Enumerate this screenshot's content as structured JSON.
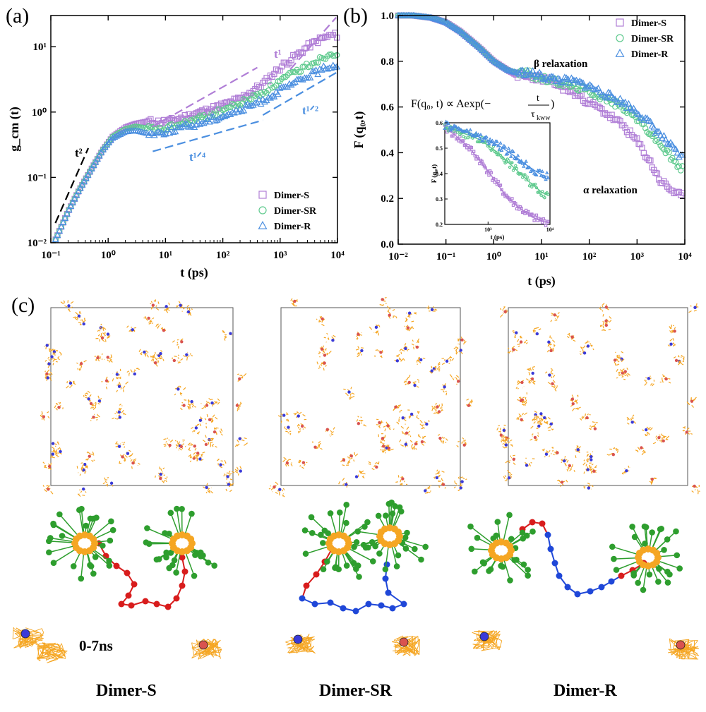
{
  "panel_labels": {
    "a": "(a)",
    "b": "(b)",
    "c": "(c)"
  },
  "colors": {
    "dimer_s": "#b07ed6",
    "dimer_sr": "#5fca8e",
    "dimer_r": "#4b8fe0",
    "orange": "#f5a623",
    "green": "#2e9e2e",
    "red": "#d81c1c",
    "blue": "#1f47d8"
  },
  "chart_data": [
    {
      "type": "scatter",
      "panel": "(a)",
      "xlabel": "t (ps)",
      "ylabel": "g_cm (t)",
      "xscale": "log",
      "yscale": "log",
      "xlim": [
        0.1,
        10000
      ],
      "ylim": [
        0.01,
        30
      ],
      "xticks": [
        "10⁻¹",
        "10⁰",
        "10¹",
        "10²",
        "10³",
        "10⁴"
      ],
      "yticks": [
        "10⁻²",
        "10⁻¹",
        "10⁰",
        "10¹"
      ],
      "legend_position": "bottom-right",
      "series": [
        {
          "name": "Dimer-S",
          "marker": "square",
          "color": "#b07ed6",
          "x": [
            0.12,
            0.2,
            0.3,
            0.5,
            0.8,
            1.2,
            2,
            3,
            5,
            8,
            12,
            20,
            30,
            50,
            80,
            120,
            200,
            300,
            500,
            800,
            1200,
            2000,
            3000,
            5000,
            8000
          ],
          "y": [
            0.011,
            0.03,
            0.06,
            0.13,
            0.26,
            0.42,
            0.58,
            0.66,
            0.72,
            0.7,
            0.73,
            0.82,
            0.92,
            1.05,
            1.2,
            1.35,
            1.6,
            2.0,
            2.7,
            4.0,
            5.5,
            7.5,
            10,
            13,
            15
          ]
        },
        {
          "name": "Dimer-SR",
          "marker": "circle",
          "color": "#5fca8e",
          "x": [
            0.12,
            0.2,
            0.3,
            0.5,
            0.8,
            1.2,
            2,
            3,
            5,
            8,
            12,
            20,
            30,
            50,
            80,
            120,
            200,
            300,
            500,
            800,
            1200,
            2000,
            3000,
            5000,
            8000
          ],
          "y": [
            0.011,
            0.03,
            0.06,
            0.13,
            0.26,
            0.42,
            0.55,
            0.6,
            0.56,
            0.53,
            0.58,
            0.66,
            0.74,
            0.86,
            1.0,
            1.15,
            1.35,
            1.6,
            2.0,
            2.6,
            3.3,
            4.2,
            5.2,
            6.5,
            8.0
          ]
        },
        {
          "name": "Dimer-R",
          "marker": "triangle",
          "color": "#4b8fe0",
          "x": [
            0.12,
            0.2,
            0.3,
            0.5,
            0.8,
            1.2,
            2,
            3,
            5,
            8,
            12,
            20,
            30,
            50,
            80,
            120,
            200,
            300,
            500,
            800,
            1200,
            2000,
            3000,
            5000,
            8000
          ],
          "y": [
            0.011,
            0.03,
            0.06,
            0.13,
            0.26,
            0.4,
            0.5,
            0.52,
            0.47,
            0.48,
            0.52,
            0.58,
            0.63,
            0.72,
            0.82,
            0.93,
            1.05,
            1.25,
            1.5,
            1.9,
            2.3,
            2.9,
            3.5,
            4.3,
            5.2
          ]
        }
      ],
      "annotations": [
        {
          "text": "t²",
          "color": "#000000",
          "line_x": [
            0.12,
            0.45
          ],
          "line_y": [
            0.02,
            0.28
          ]
        },
        {
          "text": "t¹",
          "color": "#b07ed6",
          "line_x": [
            1500,
            9500
          ],
          "line_y": [
            4.5,
            28
          ]
        },
        {
          "text": "t¹ᐟ²",
          "color": "#b07ed6",
          "line_x": [
            6,
            400
          ],
          "line_y": [
            0.6,
            4.8
          ]
        },
        {
          "text": "t¹ᐟ²",
          "color": "#4b8fe0",
          "line_x": [
            500,
            9500
          ],
          "line_y": [
            0.9,
            4.0
          ]
        },
        {
          "text": "t¹ᐟ⁴",
          "color": "#4b8fe0",
          "line_x": [
            6,
            500
          ],
          "line_y": [
            0.25,
            0.75
          ]
        }
      ]
    },
    {
      "type": "scatter",
      "panel": "(b)",
      "xlabel": "t (ps)",
      "ylabel": "F (q₀,t)",
      "xscale": "log",
      "xlim": [
        0.01,
        10000
      ],
      "ylim": [
        0.0,
        1.0
      ],
      "xticks": [
        "10⁻²",
        "10⁻¹",
        "10⁰",
        "10¹",
        "10²",
        "10³",
        "10⁴"
      ],
      "yticks": [
        "0.0",
        "0.2",
        "0.4",
        "0.6",
        "0.8",
        "1.0"
      ],
      "legend_position": "top-right",
      "series": [
        {
          "name": "Dimer-S",
          "marker": "square",
          "color": "#b07ed6",
          "x": [
            0.01,
            0.02,
            0.05,
            0.1,
            0.2,
            0.5,
            1,
            2,
            3,
            5,
            8,
            12,
            20,
            50,
            100,
            200,
            500,
            1000,
            2000,
            3000,
            5000,
            8000
          ],
          "y": [
            1.0,
            1.0,
            0.99,
            0.97,
            0.93,
            0.86,
            0.8,
            0.76,
            0.74,
            0.73,
            0.73,
            0.72,
            0.7,
            0.66,
            0.62,
            0.58,
            0.52,
            0.45,
            0.35,
            0.28,
            0.24,
            0.21
          ]
        },
        {
          "name": "Dimer-SR",
          "marker": "circle",
          "color": "#5fca8e",
          "x": [
            0.01,
            0.02,
            0.05,
            0.1,
            0.2,
            0.5,
            1,
            2,
            3,
            5,
            8,
            12,
            20,
            50,
            100,
            200,
            500,
            1000,
            2000,
            3000,
            5000,
            8000
          ],
          "y": [
            1.0,
            1.0,
            0.99,
            0.97,
            0.93,
            0.86,
            0.8,
            0.76,
            0.75,
            0.75,
            0.73,
            0.72,
            0.71,
            0.69,
            0.67,
            0.64,
            0.6,
            0.55,
            0.48,
            0.44,
            0.38,
            0.33
          ]
        },
        {
          "name": "Dimer-R",
          "marker": "triangle",
          "color": "#4b8fe0",
          "x": [
            0.01,
            0.02,
            0.05,
            0.1,
            0.2,
            0.5,
            1,
            2,
            3,
            5,
            8,
            12,
            20,
            50,
            100,
            200,
            500,
            1000,
            2000,
            3000,
            5000,
            8000
          ],
          "y": [
            1.0,
            1.0,
            0.99,
            0.97,
            0.93,
            0.86,
            0.8,
            0.76,
            0.75,
            0.75,
            0.74,
            0.73,
            0.72,
            0.71,
            0.69,
            0.66,
            0.62,
            0.58,
            0.52,
            0.48,
            0.43,
            0.38
          ]
        }
      ],
      "annotations": [
        {
          "text": "β  relaxation"
        },
        {
          "text": "α  relaxation"
        }
      ],
      "formula": {
        "lhs": "F(q₀, t) ∝ Aexp(−",
        "numerator": "t",
        "denominator": "τ",
        "denominator_sub": "kww",
        "close": ")"
      }
    },
    {
      "type": "scatter",
      "panel": "(b) inset",
      "xlabel": "t (ps)",
      "ylabel": "F (q₀,t)",
      "xscale": "log",
      "xlim": [
        200,
        10000
      ],
      "ylim": [
        0.2,
        0.6
      ],
      "xticks": [
        "10³",
        "10⁴"
      ],
      "yticks": [
        "0.2",
        "0.3",
        "0.4",
        "0.5",
        "0.6"
      ],
      "series": [
        {
          "name": "Dimer-S",
          "color": "#b07ed6",
          "x": [
            200,
            300,
            500,
            800,
            1000,
            1500,
            2000,
            3000,
            5000,
            8000
          ],
          "y": [
            0.58,
            0.55,
            0.5,
            0.44,
            0.41,
            0.35,
            0.31,
            0.27,
            0.23,
            0.21
          ]
        },
        {
          "name": "Dimer-SR",
          "color": "#5fca8e",
          "x": [
            200,
            300,
            500,
            800,
            1000,
            1500,
            2000,
            3000,
            5000,
            8000
          ],
          "y": [
            0.58,
            0.57,
            0.55,
            0.53,
            0.51,
            0.48,
            0.45,
            0.41,
            0.36,
            0.32
          ]
        },
        {
          "name": "Dimer-R",
          "color": "#4b8fe0",
          "x": [
            200,
            300,
            500,
            800,
            1000,
            1500,
            2000,
            3000,
            5000,
            8000
          ],
          "y": [
            0.59,
            0.58,
            0.56,
            0.54,
            0.53,
            0.51,
            0.49,
            0.46,
            0.42,
            0.39
          ]
        }
      ]
    }
  ],
  "panel_c": {
    "labels": [
      "Dimer-S",
      "Dimer-SR",
      "Dimer-R"
    ],
    "trace_label": "0-7ns"
  }
}
